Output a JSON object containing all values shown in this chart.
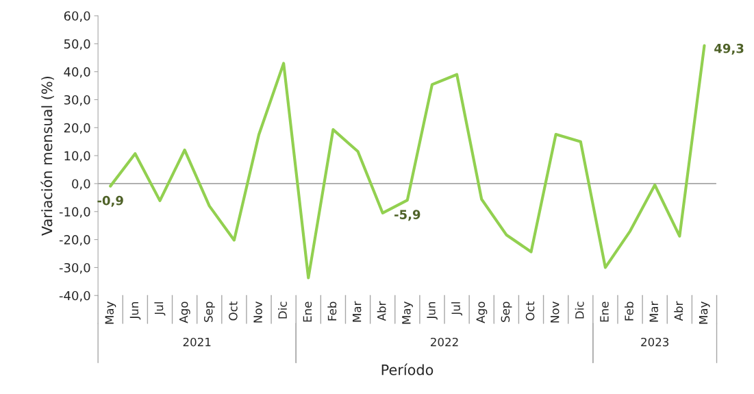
{
  "chart_data": {
    "type": "line",
    "xlabel": "Período",
    "ylabel": "Variación mensual (%)",
    "x": [
      "2021-05",
      "2021-06",
      "2021-07",
      "2021-08",
      "2021-09",
      "2021-10",
      "2021-11",
      "2021-12",
      "2022-01",
      "2022-02",
      "2022-03",
      "2022-04",
      "2022-05",
      "2022-06",
      "2022-07",
      "2022-08",
      "2022-09",
      "2022-10",
      "2022-11",
      "2022-12",
      "2023-01",
      "2023-02",
      "2023-03",
      "2023-04",
      "2023-05"
    ],
    "series": [
      {
        "color": "#92d050",
        "values": [
          -0.9,
          10.7,
          -6.1,
          12,
          -8,
          -20.2,
          17.5,
          43,
          -33.7,
          19.3,
          11.5,
          -10.5,
          -5.9,
          35.4,
          39,
          -5.6,
          -18.3,
          -24.4,
          17.6,
          15,
          -30,
          -17,
          -0.5,
          -18.8,
          49.3
        ],
        "value_labels": [
          "-0,9",
          null,
          null,
          null,
          null,
          null,
          null,
          null,
          null,
          null,
          null,
          null,
          "-5,9",
          null,
          null,
          null,
          null,
          null,
          null,
          null,
          null,
          null,
          null,
          null,
          "49,3"
        ]
      }
    ],
    "xlim": [
      "2021-04-16",
      "2023-05-16"
    ],
    "xticks": [
      {
        "value": "2021-05",
        "label": "May"
      },
      {
        "value": "2021-06",
        "label": "Jun"
      },
      {
        "value": "2021-07",
        "label": "Jul"
      },
      {
        "value": "2021-08",
        "label": "Ago"
      },
      {
        "value": "2021-09",
        "label": "Sep"
      },
      {
        "value": "2021-10",
        "label": "Oct"
      },
      {
        "value": "2021-11",
        "label": "Nov"
      },
      {
        "value": "2021-12",
        "label": "Dic"
      },
      {
        "value": "2022-01",
        "label": "Ene"
      },
      {
        "value": "2022-02",
        "label": "Feb"
      },
      {
        "value": "2022-03",
        "label": "Mar"
      },
      {
        "value": "2022-04",
        "label": "Abr"
      },
      {
        "value": "2022-05",
        "label": "May"
      },
      {
        "value": "2022-06",
        "label": "Jun"
      },
      {
        "value": "2022-07",
        "label": "Jul"
      },
      {
        "value": "2022-08",
        "label": "Ago"
      },
      {
        "value": "2022-09",
        "label": "Sep"
      },
      {
        "value": "2022-10",
        "label": "Oct"
      },
      {
        "value": "2022-11",
        "label": "Nov"
      },
      {
        "value": "2022-12",
        "label": "Dic"
      },
      {
        "value": "2023-01",
        "label": "Ene"
      },
      {
        "value": "2023-02",
        "label": "Feb"
      },
      {
        "value": "2023-03",
        "label": "Mar"
      },
      {
        "value": "2023-04",
        "label": "Abr"
      },
      {
        "value": "2023-05",
        "label": "May"
      }
    ],
    "annotations": [
      "2021",
      "2022",
      "2023"
    ],
    "ylim": [
      -40,
      60
    ],
    "yticks": [
      {
        "value": -40,
        "label": "-40,0"
      },
      {
        "value": -30,
        "label": "-30,0"
      },
      {
        "value": -20,
        "label": "-20,0"
      },
      {
        "value": -10,
        "label": "-10,0"
      },
      {
        "value": 0,
        "label": "0,0"
      },
      {
        "value": 10,
        "label": "10,0"
      },
      {
        "value": 20,
        "label": "20,0"
      },
      {
        "value": 30,
        "label": "30,0"
      },
      {
        "value": 40,
        "label": "40,0"
      },
      {
        "value": 50,
        "label": "50,0"
      },
      {
        "value": 60,
        "label": "60,0"
      }
    ],
    "ref_lines": [
      {
        "axis": "y",
        "value": 0,
        "color": "#a6a6a6"
      }
    ],
    "grid": false,
    "legend": false,
    "marker": "none",
    "line_style": "solid"
  }
}
